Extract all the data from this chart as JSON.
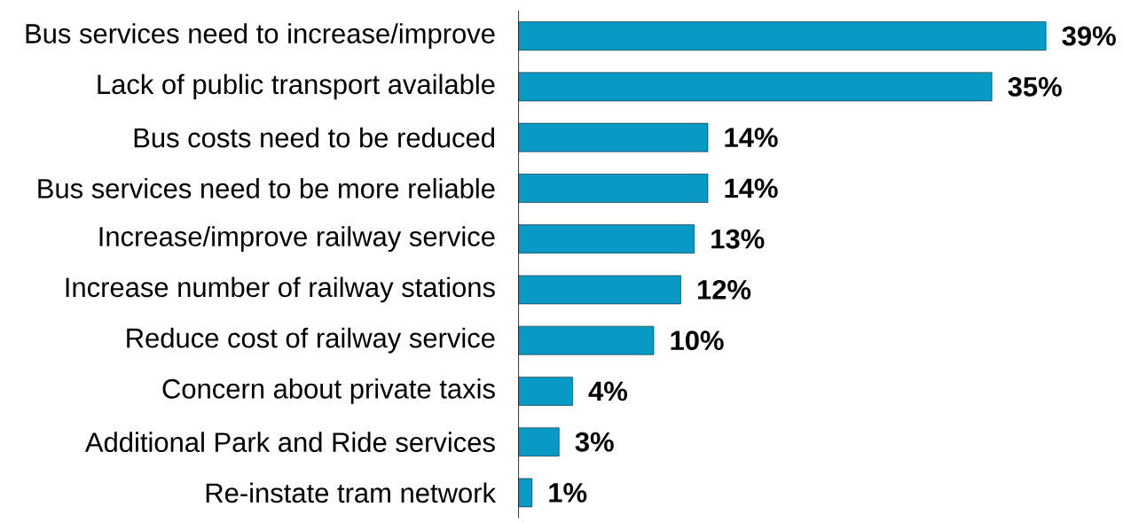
{
  "chart_data": {
    "type": "bar",
    "orientation": "horizontal",
    "categories": [
      "Bus services need to increase/improve",
      "Lack of public transport available",
      "Bus costs need to be reduced",
      "Bus services need to be more reliable",
      "Increase/improve railway service",
      "Increase number of railway stations",
      "Reduce cost of railway service",
      "Concern about private taxis",
      "Additional Park and Ride services",
      "Re-instate tram network"
    ],
    "values": [
      39,
      35,
      14,
      14,
      13,
      12,
      10,
      4,
      3,
      1
    ],
    "value_labels": [
      "39%",
      "35%",
      "14%",
      "14%",
      "13%",
      "12%",
      "10%",
      "4%",
      "3%",
      "1%"
    ],
    "color": "#0899c5",
    "xlim": [
      0,
      39
    ]
  }
}
